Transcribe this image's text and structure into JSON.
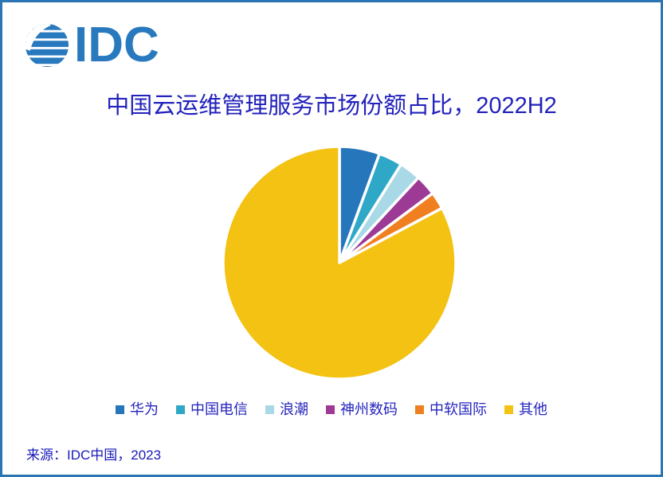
{
  "page": {
    "border_color": "#2B75B4",
    "background_color": "#FFFFFF"
  },
  "logo": {
    "text": "IDC",
    "color": "#2979BE"
  },
  "header": {
    "title": "中国云运维管理服务市场份额占比，2022H2",
    "title_color": "#2222BC"
  },
  "source": {
    "text": "来源：IDC中国，2023"
  },
  "chart_data": {
    "type": "pie",
    "title": "中国云运维管理服务市场份额占比，2022H2",
    "labels": [
      "华为",
      "中国电信",
      "浪潮",
      "神州数码",
      "中软国际",
      "其他"
    ],
    "values": [
      5.6,
      3.3,
      3.0,
      2.9,
      2.4,
      82.8
    ],
    "colors": [
      "#2676BC",
      "#2FA8C8",
      "#A9D8E6",
      "#9C3A96",
      "#F0801F",
      "#F3C213"
    ],
    "start_angle_deg": 0,
    "direction": "clockwise",
    "slice_gap_color": "#FFFFFF",
    "slice_gap_width": 3.5,
    "data_labels_shown": false,
    "legend_position": "bottom"
  }
}
